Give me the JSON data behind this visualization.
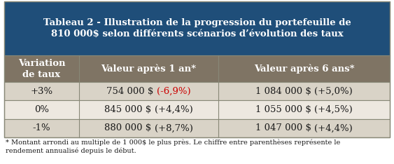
{
  "title_line1": "Tableau 2 - Illustration de la progression du portefeuille de",
  "title_line2": "810 000$ selon différents scénarios d’évolution des taux",
  "header_col1": "Variation\nde taux",
  "header_col2": "Valeur après 1 an*",
  "header_col3": "Valeur après 6 ans*",
  "rows": [
    {
      "col1": "+3%",
      "col2_main": "754 000 $ ",
      "col2_paren": "(-6,9%)",
      "col2_paren_color": "#cc0000",
      "col3_main": "1 084 000 $ ",
      "col3_paren": "(+5,0%)",
      "col3_paren_color": "#1a1a1a",
      "bg": "#d9d3c7"
    },
    {
      "col1": "0%",
      "col2_main": "845 000 $ ",
      "col2_paren": "(+4,4%)",
      "col2_paren_color": "#1a1a1a",
      "col3_main": "1 055 000 $ ",
      "col3_paren": "(+4,5%)",
      "col3_paren_color": "#1a1a1a",
      "bg": "#ede8e0"
    },
    {
      "col1": "-1%",
      "col2_main": "880 000 $ ",
      "col2_paren": "(+8,7%)",
      "col2_paren_color": "#1a1a1a",
      "col3_main": "1 047 000 $ ",
      "col3_paren": "(+4,4%)",
      "col3_paren_color": "#1a1a1a",
      "bg": "#d9d3c7"
    }
  ],
  "footer": "* Montant arrondi au multiple de 1 000$ le plus près. Le chiffre entre parenthèses représente le\nrendement annualisé depuis le début.",
  "title_bg": "#1f4e79",
  "title_fg": "#ffffff",
  "header_bg": "#7f7464",
  "header_fg": "#ffffff",
  "data_fg": "#1a1a1a",
  "border_color": "#888877",
  "footer_fontsize": 7.0,
  "title_fontsize": 9.5,
  "header_fontsize": 9.5,
  "data_fontsize": 9.5,
  "fig_width": 5.63,
  "fig_height": 2.34,
  "dpi": 100
}
